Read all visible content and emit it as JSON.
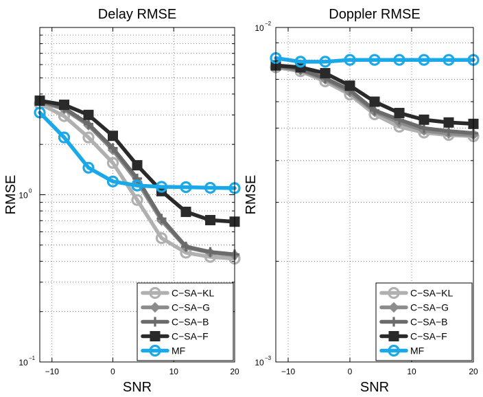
{
  "chart_data": [
    {
      "type": "line",
      "title": "Delay RMSE",
      "xlabel": "SNR",
      "ylabel": "RMSE",
      "yscale": "log",
      "grid": true,
      "xlim": [
        -12,
        20
      ],
      "ylim": [
        0.1,
        10
      ],
      "x_ticks": [
        {
          "value": -10,
          "label": "−10"
        },
        {
          "value": 0,
          "label": "0"
        },
        {
          "value": 10,
          "label": "10"
        },
        {
          "value": 20,
          "label": "20"
        }
      ],
      "y_ticks": [
        {
          "value": 0.1,
          "base": "10",
          "exp": "−1"
        },
        {
          "value": 1,
          "base": "10",
          "exp": "0"
        }
      ],
      "legend_position": "bottom-right",
      "x": [
        -12,
        -8,
        -4,
        0,
        4,
        8,
        12,
        16,
        20
      ],
      "series": [
        {
          "name": "C−SA−KL",
          "color": "#b0b0b0",
          "marker": "circle",
          "values": [
            3.5,
            2.95,
            2.2,
            1.55,
            0.93,
            0.55,
            0.45,
            0.425,
            0.415
          ]
        },
        {
          "name": "C−SA−G",
          "color": "#8c8c8c",
          "marker": "diamond",
          "values": [
            3.6,
            3.25,
            2.6,
            1.85,
            1.2,
            0.7,
            0.485,
            0.45,
            0.435
          ]
        },
        {
          "name": "C−SA−B",
          "color": "#6b6b6b",
          "marker": "plus",
          "values": [
            3.65,
            3.3,
            2.65,
            1.9,
            1.25,
            0.72,
            0.49,
            0.455,
            0.44
          ]
        },
        {
          "name": "C−SA−F",
          "color": "#2a2a2a",
          "marker": "square",
          "values": [
            3.65,
            3.45,
            3.0,
            2.25,
            1.5,
            1.05,
            0.79,
            0.705,
            0.69
          ]
        },
        {
          "name": "MF",
          "color": "#1aa8e8",
          "marker": "circle",
          "values": [
            3.1,
            2.2,
            1.45,
            1.2,
            1.135,
            1.115,
            1.11,
            1.1,
            1.095
          ]
        }
      ]
    },
    {
      "type": "line",
      "title": "Doppler RMSE",
      "xlabel": "SNR",
      "ylabel": "RMSE",
      "yscale": "log",
      "grid": true,
      "xlim": [
        -12,
        20
      ],
      "ylim": [
        0.001,
        0.01
      ],
      "x_ticks": [
        {
          "value": -10,
          "label": "−10"
        },
        {
          "value": 0,
          "label": "0"
        },
        {
          "value": 10,
          "label": "10"
        },
        {
          "value": 20,
          "label": "20"
        }
      ],
      "y_ticks": [
        {
          "value": 0.001,
          "base": "10",
          "exp": "−3"
        },
        {
          "value": 0.01,
          "base": "10",
          "exp": "−2"
        }
      ],
      "legend_position": "bottom-right",
      "x": [
        -12,
        -8,
        -4,
        0,
        4,
        8,
        12,
        16,
        20
      ],
      "series": [
        {
          "name": "C−SA−KL",
          "color": "#b0b0b0",
          "marker": "circle",
          "values": [
            0.0076,
            0.0074,
            0.0069,
            0.0063,
            0.0055,
            0.00505,
            0.00485,
            0.00477,
            0.00473
          ]
        },
        {
          "name": "C−SA−G",
          "color": "#8c8c8c",
          "marker": "diamond",
          "values": [
            0.00765,
            0.00745,
            0.007,
            0.0064,
            0.0056,
            0.0052,
            0.00492,
            0.00482,
            0.00477
          ]
        },
        {
          "name": "C−SA−B",
          "color": "#6b6b6b",
          "marker": "plus",
          "values": [
            0.0077,
            0.0075,
            0.00705,
            0.0065,
            0.00565,
            0.0053,
            0.005,
            0.0049,
            0.00483
          ]
        },
        {
          "name": "C−SA−F",
          "color": "#2a2a2a",
          "marker": "square",
          "values": [
            0.0077,
            0.0076,
            0.0073,
            0.0067,
            0.006,
            0.00555,
            0.0053,
            0.0052,
            0.00515
          ]
        },
        {
          "name": "MF",
          "color": "#1aa8e8",
          "marker": "circle",
          "values": [
            0.0081,
            0.0079,
            0.0079,
            0.008,
            0.008,
            0.008,
            0.008,
            0.008,
            0.008
          ]
        }
      ]
    }
  ]
}
